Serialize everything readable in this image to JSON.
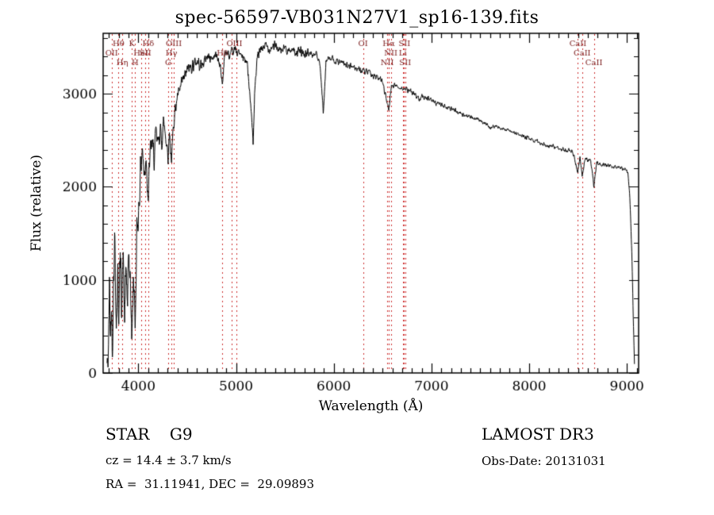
{
  "chart_data": {
    "type": "line",
    "title": "spec-56597-VB031N27V1_sp16-139.fits",
    "xlabel": "Wavelength (Å)",
    "ylabel": "Flux (relative)",
    "xlim": [
      3640,
      9120
    ],
    "ylim": [
      0,
      3650
    ],
    "x_major_ticks": [
      4000,
      5000,
      6000,
      7000,
      8000,
      9000
    ],
    "x_minor_step": 100,
    "y_major_ticks": [
      0,
      1000,
      2000,
      3000
    ],
    "y_minor_step": 200,
    "grid": false,
    "legend": "none",
    "line_color": "#000000",
    "spectral_line_color": "#cc2a2a",
    "spectral_label_color": "#7a1a1a",
    "spectral_lines": [
      3727,
      3798,
      3835,
      3934,
      3968,
      4026,
      4072,
      4102,
      4305,
      4340,
      4363,
      4861,
      4959,
      5007,
      6300,
      6548,
      6563,
      6583,
      6707,
      6716,
      6731,
      8498,
      8542,
      8662
    ],
    "spectral_labels": [
      {
        "wl": 3798,
        "text": "Hθ",
        "row": 1
      },
      {
        "wl": 3934,
        "text": "K",
        "row": 1
      },
      {
        "wl": 4102,
        "text": "Hδ",
        "row": 1
      },
      {
        "wl": 4363,
        "text": "OIII",
        "row": 1
      },
      {
        "wl": 4983,
        "text": "OIII",
        "row": 1
      },
      {
        "wl": 6300,
        "text": "OI",
        "row": 1
      },
      {
        "wl": 6563,
        "text": "Hα",
        "row": 1
      },
      {
        "wl": 6724,
        "text": "SII",
        "row": 1
      },
      {
        "wl": 8498,
        "text": "CaII",
        "row": 1
      },
      {
        "wl": 3727,
        "text": "OII",
        "row": 2
      },
      {
        "wl": 4026,
        "text": "HeI",
        "row": 2
      },
      {
        "wl": 4072,
        "text": "SII",
        "row": 2
      },
      {
        "wl": 4340,
        "text": "Hγ",
        "row": 2
      },
      {
        "wl": 4861,
        "text": "Hβ",
        "row": 2
      },
      {
        "wl": 6583,
        "text": "NII",
        "row": 2
      },
      {
        "wl": 6707,
        "text": "Li",
        "row": 2
      },
      {
        "wl": 8542,
        "text": "CaII",
        "row": 2
      },
      {
        "wl": 3835,
        "text": "Hη",
        "row": 3
      },
      {
        "wl": 3968,
        "text": "H",
        "row": 3
      },
      {
        "wl": 4305,
        "text": "G",
        "row": 3
      },
      {
        "wl": 6548,
        "text": "NII",
        "row": 3
      },
      {
        "wl": 6731,
        "text": "SII",
        "row": 3
      },
      {
        "wl": 8662,
        "text": "CaII",
        "row": 3
      }
    ],
    "continuum_anchors": [
      [
        3680,
        20
      ],
      [
        3695,
        250
      ],
      [
        3705,
        950
      ],
      [
        3715,
        420
      ],
      [
        3725,
        700
      ],
      [
        3735,
        300
      ],
      [
        3745,
        1000
      ],
      [
        3760,
        1450
      ],
      [
        3775,
        500
      ],
      [
        3790,
        1050
      ],
      [
        3800,
        700
      ],
      [
        3815,
        1200
      ],
      [
        3830,
        800
      ],
      [
        3845,
        1250
      ],
      [
        3860,
        550
      ],
      [
        3875,
        1150
      ],
      [
        3890,
        700
      ],
      [
        3905,
        1300
      ],
      [
        3920,
        900
      ],
      [
        3934,
        350
      ],
      [
        3950,
        1100
      ],
      [
        3968,
        500
      ],
      [
        3985,
        1500
      ],
      [
        4000,
        1700
      ],
      [
        4020,
        2100
      ],
      [
        4040,
        2450
      ],
      [
        4060,
        2100
      ],
      [
        4080,
        2350
      ],
      [
        4102,
        1900
      ],
      [
        4120,
        2350
      ],
      [
        4140,
        2500
      ],
      [
        4160,
        2300
      ],
      [
        4180,
        2550
      ],
      [
        4200,
        2450
      ],
      [
        4220,
        2600
      ],
      [
        4240,
        2500
      ],
      [
        4260,
        2700
      ],
      [
        4280,
        2550
      ],
      [
        4305,
        2350
      ],
      [
        4320,
        2600
      ],
      [
        4340,
        2250
      ],
      [
        4360,
        2700
      ],
      [
        4380,
        2850
      ],
      [
        4400,
        2950
      ],
      [
        4430,
        3050
      ],
      [
        4460,
        3150
      ],
      [
        4500,
        3250
      ],
      [
        4550,
        3300
      ],
      [
        4600,
        3350
      ],
      [
        4650,
        3300
      ],
      [
        4700,
        3400
      ],
      [
        4750,
        3380
      ],
      [
        4800,
        3420
      ],
      [
        4830,
        3350
      ],
      [
        4861,
        3100
      ],
      [
        4880,
        3400
      ],
      [
        4900,
        3450
      ],
      [
        4930,
        3400
      ],
      [
        4960,
        3430
      ],
      [
        5000,
        3480
      ],
      [
        5040,
        3420
      ],
      [
        5080,
        3380
      ],
      [
        5120,
        3300
      ],
      [
        5160,
        2750
      ],
      [
        5175,
        2450
      ],
      [
        5190,
        3000
      ],
      [
        5220,
        3400
      ],
      [
        5260,
        3480
      ],
      [
        5300,
        3520
      ],
      [
        5340,
        3480
      ],
      [
        5380,
        3520
      ],
      [
        5420,
        3500
      ],
      [
        5460,
        3450
      ],
      [
        5500,
        3500
      ],
      [
        5540,
        3460
      ],
      [
        5580,
        3480
      ],
      [
        5620,
        3440
      ],
      [
        5660,
        3460
      ],
      [
        5700,
        3420
      ],
      [
        5740,
        3440
      ],
      [
        5780,
        3420
      ],
      [
        5820,
        3430
      ],
      [
        5860,
        3300
      ],
      [
        5893,
        2800
      ],
      [
        5920,
        3350
      ],
      [
        5960,
        3380
      ],
      [
        6000,
        3360
      ],
      [
        6050,
        3340
      ],
      [
        6100,
        3320
      ],
      [
        6150,
        3300
      ],
      [
        6200,
        3290
      ],
      [
        6250,
        3270
      ],
      [
        6300,
        3240
      ],
      [
        6350,
        3230
      ],
      [
        6400,
        3200
      ],
      [
        6450,
        3170
      ],
      [
        6500,
        3140
      ],
      [
        6563,
        2820
      ],
      [
        6590,
        3100
      ],
      [
        6650,
        3080
      ],
      [
        6700,
        3060
      ],
      [
        6750,
        3040
      ],
      [
        6800,
        3020
      ],
      [
        6870,
        2950
      ],
      [
        6900,
        2980
      ],
      [
        6950,
        2960
      ],
      [
        7000,
        2930
      ],
      [
        7050,
        2900
      ],
      [
        7100,
        2880
      ],
      [
        7150,
        2860
      ],
      [
        7200,
        2840
      ],
      [
        7250,
        2820
      ],
      [
        7300,
        2790
      ],
      [
        7350,
        2770
      ],
      [
        7400,
        2750
      ],
      [
        7450,
        2730
      ],
      [
        7500,
        2710
      ],
      [
        7550,
        2690
      ],
      [
        7600,
        2630
      ],
      [
        7650,
        2650
      ],
      [
        7700,
        2640
      ],
      [
        7750,
        2620
      ],
      [
        7800,
        2600
      ],
      [
        7850,
        2580
      ],
      [
        7900,
        2560
      ],
      [
        7950,
        2540
      ],
      [
        8000,
        2520
      ],
      [
        8050,
        2500
      ],
      [
        8100,
        2480
      ],
      [
        8150,
        2460
      ],
      [
        8200,
        2440
      ],
      [
        8250,
        2430
      ],
      [
        8300,
        2420
      ],
      [
        8350,
        2400
      ],
      [
        8400,
        2390
      ],
      [
        8450,
        2370
      ],
      [
        8498,
        2150
      ],
      [
        8520,
        2330
      ],
      [
        8542,
        2100
      ],
      [
        8570,
        2300
      ],
      [
        8600,
        2290
      ],
      [
        8630,
        2280
      ],
      [
        8662,
        2000
      ],
      [
        8690,
        2260
      ],
      [
        8730,
        2250
      ],
      [
        8770,
        2240
      ],
      [
        8810,
        2230
      ],
      [
        8850,
        2220
      ],
      [
        8890,
        2210
      ],
      [
        8930,
        2200
      ],
      [
        8960,
        2190
      ],
      [
        8990,
        2180
      ],
      [
        9010,
        2150
      ],
      [
        9030,
        1900
      ],
      [
        9050,
        1300
      ],
      [
        9065,
        600
      ],
      [
        9078,
        80
      ]
    ],
    "noise_profile": [
      [
        3680,
        320
      ],
      [
        3950,
        300
      ],
      [
        4100,
        220
      ],
      [
        4300,
        130
      ],
      [
        4600,
        90
      ],
      [
        5000,
        80
      ],
      [
        5500,
        70
      ],
      [
        6000,
        55
      ],
      [
        6500,
        45
      ],
      [
        7000,
        38
      ],
      [
        7500,
        32
      ],
      [
        8000,
        30
      ],
      [
        8500,
        35
      ],
      [
        9000,
        30
      ]
    ],
    "noise_seed": 42,
    "sample_step": 2.5
  },
  "annotations": {
    "class_line": "STAR    G9",
    "survey": "LAMOST DR3",
    "cz_line": "cz = 14.4 ± 3.7 km/s",
    "obs_date": "Obs-Date: 20131031",
    "radec_line": "RA =  31.11941, DEC =  29.09893"
  }
}
